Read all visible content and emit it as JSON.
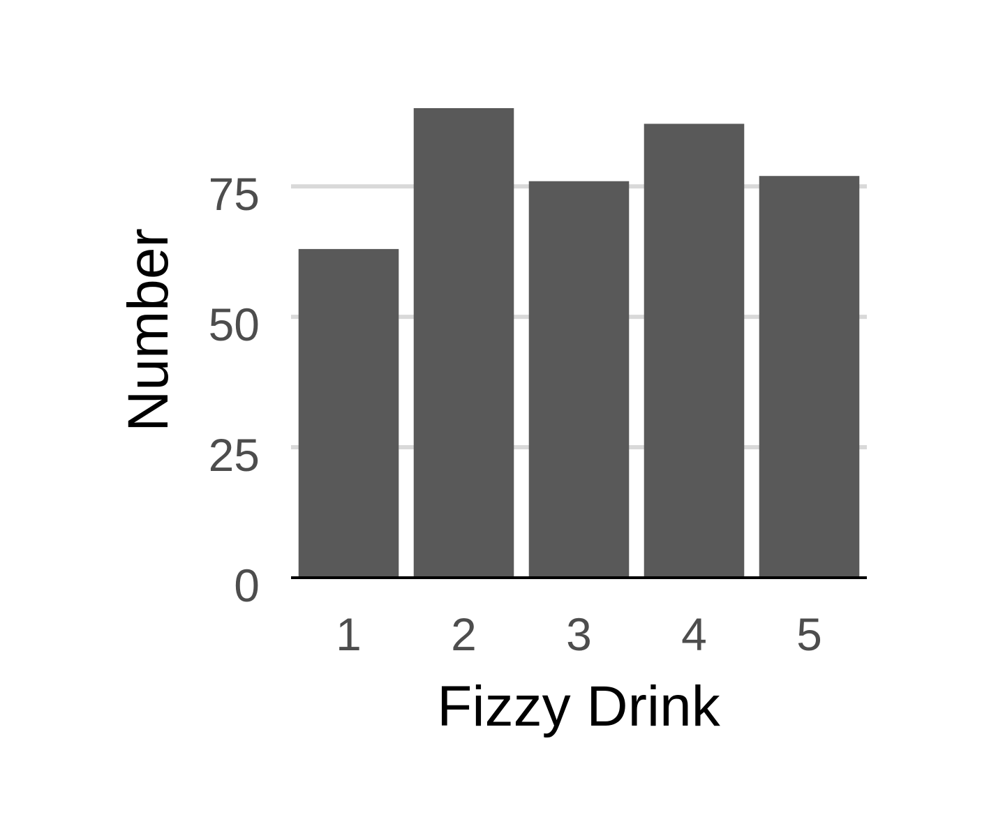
{
  "chart_data": {
    "type": "bar",
    "title": "",
    "xlabel": "Fizzy Drink",
    "ylabel": "Number",
    "categories": [
      "1",
      "2",
      "3",
      "4",
      "5"
    ],
    "values": [
      63,
      90,
      76,
      87,
      77
    ],
    "ylim": [
      0,
      90
    ],
    "yticks": [
      0,
      25,
      50,
      75
    ],
    "ytick_labels": [
      "0",
      "25",
      "50",
      "75"
    ],
    "grid": "horizontal major gridlines",
    "legend": "none",
    "colors": {
      "bar": "#595959",
      "grid": "#d9d9d9",
      "axis_line": "#000000",
      "tick_text": "#4d4d4d",
      "title_text": "#000000",
      "background": "#ffffff"
    }
  }
}
